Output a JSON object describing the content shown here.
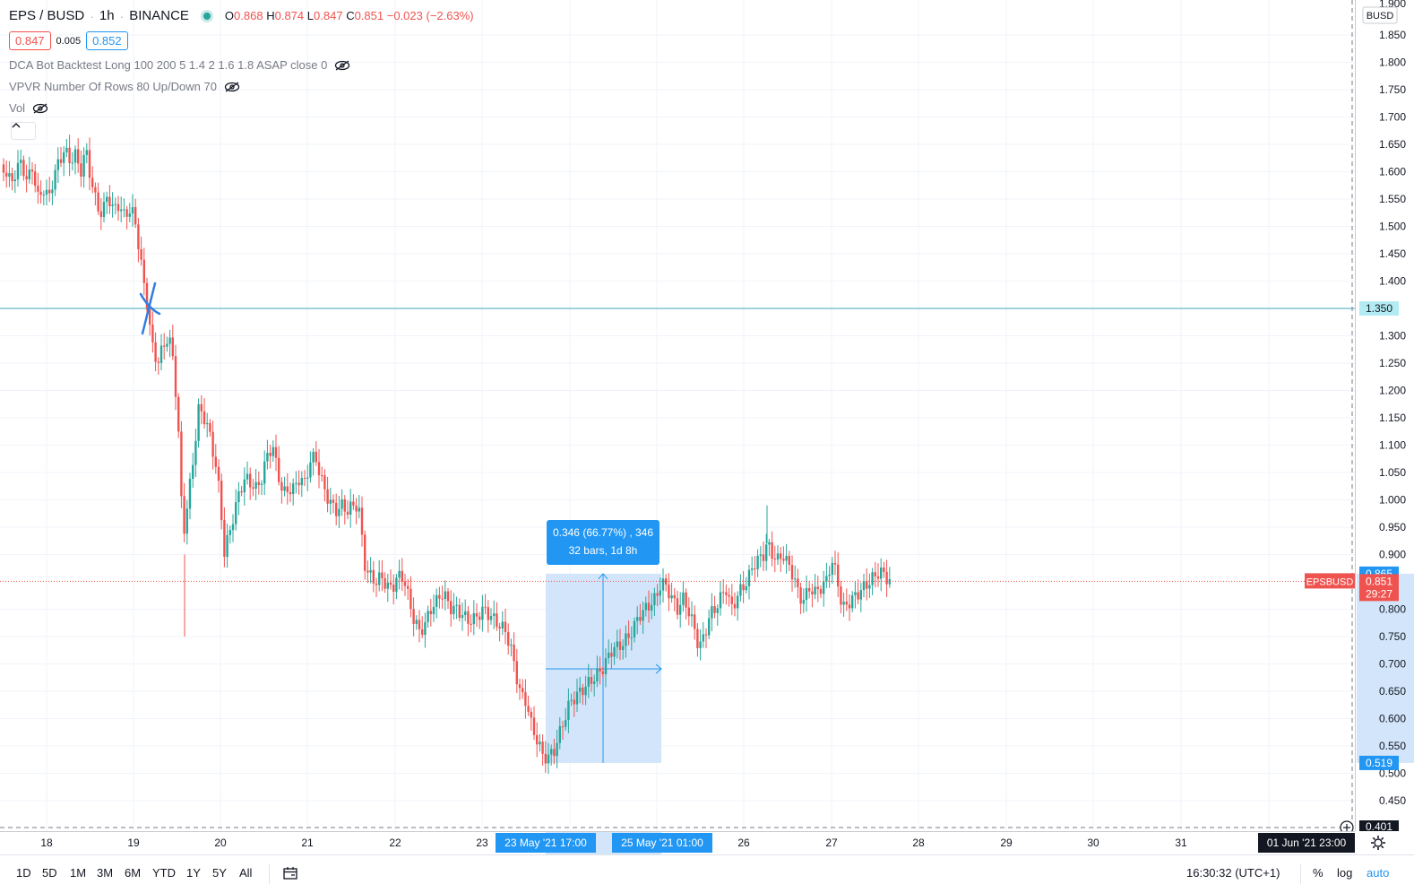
{
  "header": {
    "symbol": "EPS / BUSD",
    "interval": "1h",
    "exchange": "BINANCE",
    "ohlc": {
      "o_label": "O",
      "o": "0.868",
      "h_label": "H",
      "h": "0.874",
      "l_label": "L",
      "l": "0.847",
      "c_label": "C",
      "c": "0.851",
      "change": "−0.023 (−2.63%)"
    },
    "bid": "0.847",
    "spread": "0.005",
    "ask": "0.852"
  },
  "studies": [
    {
      "label": "DCA Bot Backtest Long 100 200 5 1.4 2 1.6 1.8 ASAP close 0"
    },
    {
      "label": "VPVR Number Of Rows 80 Up/Down 70"
    },
    {
      "label": "Vol"
    }
  ],
  "collapse_button": "^",
  "measure": {
    "line1": "0.346 (66.77%) , 346",
    "line2": "32 bars, 1d 8h"
  },
  "price_axis": {
    "currency": "BUSD",
    "ticks": [
      "1.850",
      "1.800",
      "1.750",
      "1.700",
      "1.650",
      "1.600",
      "1.550",
      "1.500",
      "1.450",
      "1.400",
      "1.300",
      "1.250",
      "1.200",
      "1.150",
      "1.100",
      "1.050",
      "1.000",
      "0.950",
      "0.900",
      "0.800",
      "0.750",
      "0.700",
      "0.650",
      "0.600",
      "0.550",
      "0.500",
      "0.450"
    ],
    "top_partial": "1.900",
    "bottom_partial": "0.401",
    "hline_label": "1.350",
    "measure_high": "0.865",
    "measure_low": "0.519",
    "last_price": "0.851",
    "countdown": "29:27",
    "symbol_badge": "EPSBUSD"
  },
  "time_axis": {
    "ticks": [
      "18",
      "19",
      "20",
      "21",
      "22",
      "23",
      "26",
      "27",
      "28",
      "29",
      "30",
      "31"
    ],
    "measure_start": "23 May '21   17:00",
    "measure_end": "25 May '21   01:00",
    "crosshair": "01 Jun '21   23:00"
  },
  "bottom_bar": {
    "ranges": [
      "1D",
      "5D",
      "1M",
      "3M",
      "6M",
      "YTD",
      "1Y",
      "5Y",
      "All"
    ],
    "clock": "16:30:32 (UTC+1)",
    "percent": "%",
    "log": "log",
    "auto": "auto"
  },
  "colors": {
    "up": "#26a69a",
    "down": "#ef5350",
    "hline": "#42a5b8",
    "measure_fill": "#d3e5fa",
    "accent": "#2196f3"
  },
  "chart_data": {
    "type": "candlestick",
    "interval": "1h",
    "ylim": [
      0.401,
      1.9
    ],
    "hline": 1.35,
    "last_price": 0.851,
    "measure": {
      "from": 0.519,
      "to": 0.865,
      "change": 0.346,
      "change_pct": 66.77,
      "bars": 32
    }
  }
}
